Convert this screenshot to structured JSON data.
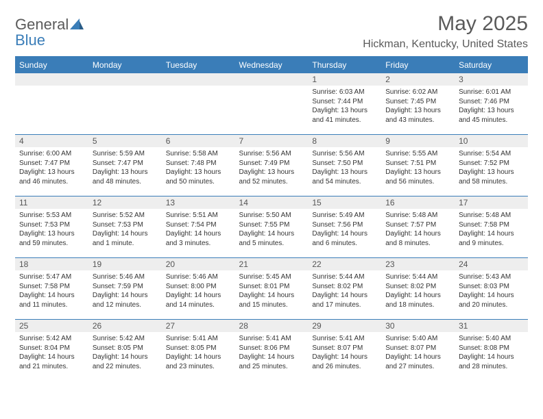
{
  "brand": {
    "part1": "General",
    "part2": "Blue"
  },
  "title": {
    "month": "May 2025",
    "location": "Hickman, Kentucky, United States"
  },
  "colors": {
    "header_bg": "#3a7db8",
    "day_header_bg": "#eeeeee",
    "text": "#333333",
    "title_text": "#5a5a5a"
  },
  "layout": {
    "cols": 7,
    "rows": 5
  },
  "day_names": [
    "Sunday",
    "Monday",
    "Tuesday",
    "Wednesday",
    "Thursday",
    "Friday",
    "Saturday"
  ],
  "weeks": [
    [
      {
        "n": "",
        "sr": "",
        "ss": "",
        "dl": ""
      },
      {
        "n": "",
        "sr": "",
        "ss": "",
        "dl": ""
      },
      {
        "n": "",
        "sr": "",
        "ss": "",
        "dl": ""
      },
      {
        "n": "",
        "sr": "",
        "ss": "",
        "dl": ""
      },
      {
        "n": "1",
        "sr": "Sunrise: 6:03 AM",
        "ss": "Sunset: 7:44 PM",
        "dl": "Daylight: 13 hours and 41 minutes."
      },
      {
        "n": "2",
        "sr": "Sunrise: 6:02 AM",
        "ss": "Sunset: 7:45 PM",
        "dl": "Daylight: 13 hours and 43 minutes."
      },
      {
        "n": "3",
        "sr": "Sunrise: 6:01 AM",
        "ss": "Sunset: 7:46 PM",
        "dl": "Daylight: 13 hours and 45 minutes."
      }
    ],
    [
      {
        "n": "4",
        "sr": "Sunrise: 6:00 AM",
        "ss": "Sunset: 7:47 PM",
        "dl": "Daylight: 13 hours and 46 minutes."
      },
      {
        "n": "5",
        "sr": "Sunrise: 5:59 AM",
        "ss": "Sunset: 7:47 PM",
        "dl": "Daylight: 13 hours and 48 minutes."
      },
      {
        "n": "6",
        "sr": "Sunrise: 5:58 AM",
        "ss": "Sunset: 7:48 PM",
        "dl": "Daylight: 13 hours and 50 minutes."
      },
      {
        "n": "7",
        "sr": "Sunrise: 5:56 AM",
        "ss": "Sunset: 7:49 PM",
        "dl": "Daylight: 13 hours and 52 minutes."
      },
      {
        "n": "8",
        "sr": "Sunrise: 5:56 AM",
        "ss": "Sunset: 7:50 PM",
        "dl": "Daylight: 13 hours and 54 minutes."
      },
      {
        "n": "9",
        "sr": "Sunrise: 5:55 AM",
        "ss": "Sunset: 7:51 PM",
        "dl": "Daylight: 13 hours and 56 minutes."
      },
      {
        "n": "10",
        "sr": "Sunrise: 5:54 AM",
        "ss": "Sunset: 7:52 PM",
        "dl": "Daylight: 13 hours and 58 minutes."
      }
    ],
    [
      {
        "n": "11",
        "sr": "Sunrise: 5:53 AM",
        "ss": "Sunset: 7:53 PM",
        "dl": "Daylight: 13 hours and 59 minutes."
      },
      {
        "n": "12",
        "sr": "Sunrise: 5:52 AM",
        "ss": "Sunset: 7:53 PM",
        "dl": "Daylight: 14 hours and 1 minute."
      },
      {
        "n": "13",
        "sr": "Sunrise: 5:51 AM",
        "ss": "Sunset: 7:54 PM",
        "dl": "Daylight: 14 hours and 3 minutes."
      },
      {
        "n": "14",
        "sr": "Sunrise: 5:50 AM",
        "ss": "Sunset: 7:55 PM",
        "dl": "Daylight: 14 hours and 5 minutes."
      },
      {
        "n": "15",
        "sr": "Sunrise: 5:49 AM",
        "ss": "Sunset: 7:56 PM",
        "dl": "Daylight: 14 hours and 6 minutes."
      },
      {
        "n": "16",
        "sr": "Sunrise: 5:48 AM",
        "ss": "Sunset: 7:57 PM",
        "dl": "Daylight: 14 hours and 8 minutes."
      },
      {
        "n": "17",
        "sr": "Sunrise: 5:48 AM",
        "ss": "Sunset: 7:58 PM",
        "dl": "Daylight: 14 hours and 9 minutes."
      }
    ],
    [
      {
        "n": "18",
        "sr": "Sunrise: 5:47 AM",
        "ss": "Sunset: 7:58 PM",
        "dl": "Daylight: 14 hours and 11 minutes."
      },
      {
        "n": "19",
        "sr": "Sunrise: 5:46 AM",
        "ss": "Sunset: 7:59 PM",
        "dl": "Daylight: 14 hours and 12 minutes."
      },
      {
        "n": "20",
        "sr": "Sunrise: 5:46 AM",
        "ss": "Sunset: 8:00 PM",
        "dl": "Daylight: 14 hours and 14 minutes."
      },
      {
        "n": "21",
        "sr": "Sunrise: 5:45 AM",
        "ss": "Sunset: 8:01 PM",
        "dl": "Daylight: 14 hours and 15 minutes."
      },
      {
        "n": "22",
        "sr": "Sunrise: 5:44 AM",
        "ss": "Sunset: 8:02 PM",
        "dl": "Daylight: 14 hours and 17 minutes."
      },
      {
        "n": "23",
        "sr": "Sunrise: 5:44 AM",
        "ss": "Sunset: 8:02 PM",
        "dl": "Daylight: 14 hours and 18 minutes."
      },
      {
        "n": "24",
        "sr": "Sunrise: 5:43 AM",
        "ss": "Sunset: 8:03 PM",
        "dl": "Daylight: 14 hours and 20 minutes."
      }
    ],
    [
      {
        "n": "25",
        "sr": "Sunrise: 5:42 AM",
        "ss": "Sunset: 8:04 PM",
        "dl": "Daylight: 14 hours and 21 minutes."
      },
      {
        "n": "26",
        "sr": "Sunrise: 5:42 AM",
        "ss": "Sunset: 8:05 PM",
        "dl": "Daylight: 14 hours and 22 minutes."
      },
      {
        "n": "27",
        "sr": "Sunrise: 5:41 AM",
        "ss": "Sunset: 8:05 PM",
        "dl": "Daylight: 14 hours and 23 minutes."
      },
      {
        "n": "28",
        "sr": "Sunrise: 5:41 AM",
        "ss": "Sunset: 8:06 PM",
        "dl": "Daylight: 14 hours and 25 minutes."
      },
      {
        "n": "29",
        "sr": "Sunrise: 5:41 AM",
        "ss": "Sunset: 8:07 PM",
        "dl": "Daylight: 14 hours and 26 minutes."
      },
      {
        "n": "30",
        "sr": "Sunrise: 5:40 AM",
        "ss": "Sunset: 8:07 PM",
        "dl": "Daylight: 14 hours and 27 minutes."
      },
      {
        "n": "31",
        "sr": "Sunrise: 5:40 AM",
        "ss": "Sunset: 8:08 PM",
        "dl": "Daylight: 14 hours and 28 minutes."
      }
    ]
  ]
}
